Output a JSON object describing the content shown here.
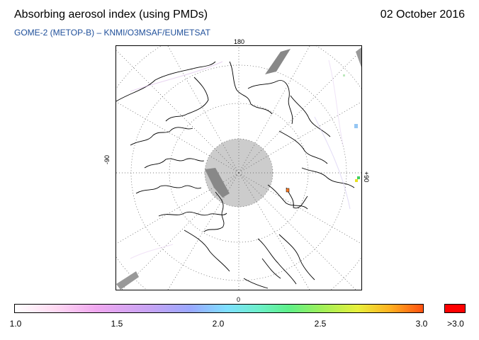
{
  "header": {
    "title": "Absorbing aerosol index (using PMDs)",
    "date": "02 October 2016",
    "subtitle": "GOME-2 (METOP-B)  –  KNMI/O3MSAF/EUMETSAT"
  },
  "map": {
    "projection": "polar stereographic (north pole)",
    "longitude_labels": {
      "top": "180",
      "bottom": "0",
      "left": "-90",
      "right": "+90"
    },
    "polar_no_data_color": "#cccccc",
    "land_outline_color": "#000000",
    "grid_style": "dotted"
  },
  "colorbar": {
    "tick_labels": [
      "1.0",
      "1.5",
      "2.0",
      "2.5",
      "3.0"
    ],
    "overflow_label": ">3.0",
    "overflow_color": "#ff0000",
    "colors": [
      "#ffffff",
      "#f0a8f0",
      "#9aa8ff",
      "#7ee0ff",
      "#5ef08a",
      "#e8f03c",
      "#ff5010"
    ]
  }
}
